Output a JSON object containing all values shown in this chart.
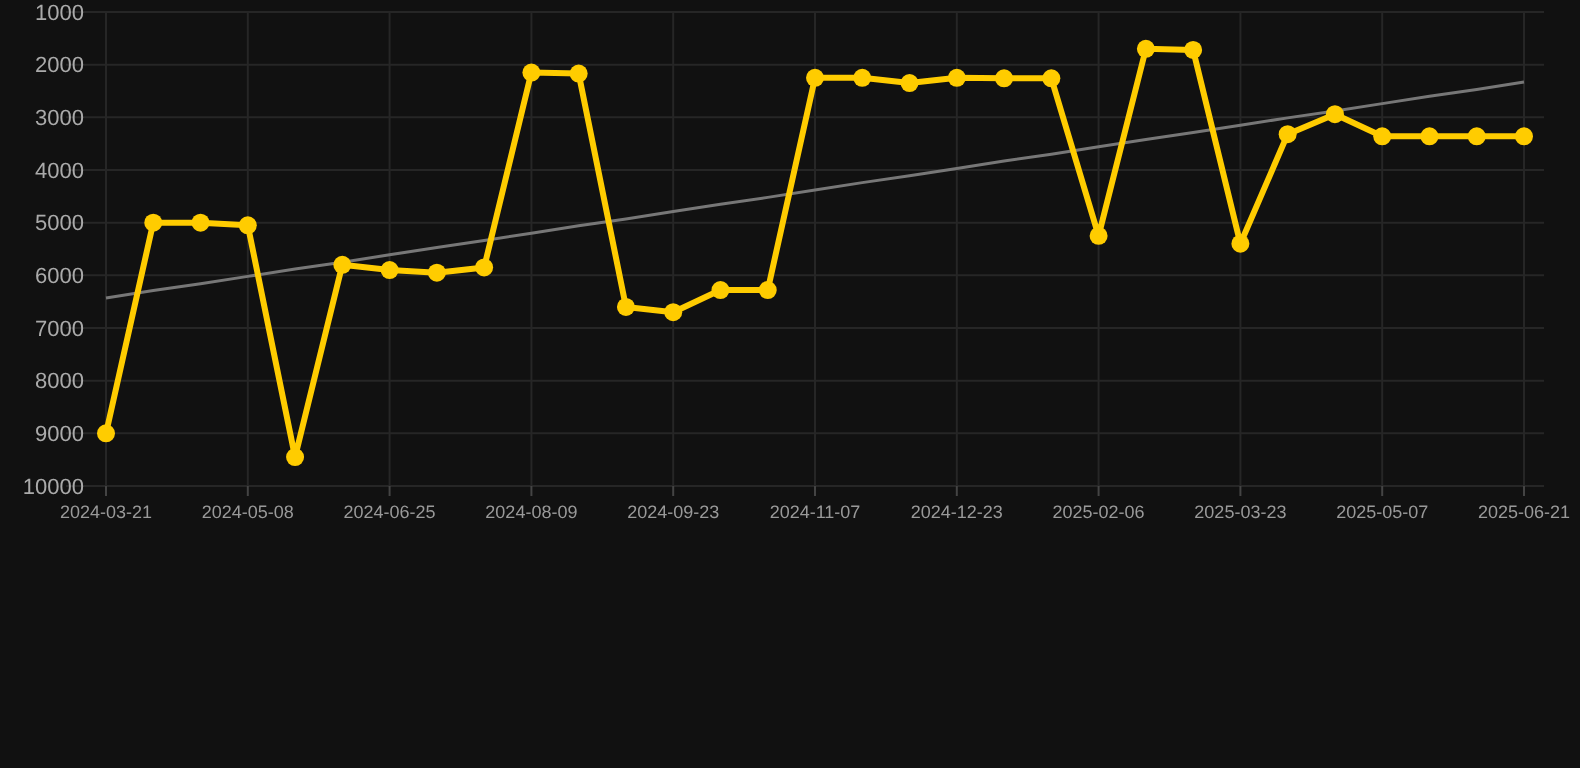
{
  "chart_data": {
    "type": "line",
    "categories": [
      "2024-03-21",
      null,
      null,
      "2024-05-08",
      null,
      null,
      "2024-06-25",
      null,
      null,
      "2024-08-09",
      null,
      null,
      "2024-09-23",
      null,
      null,
      "2024-11-07",
      null,
      null,
      "2024-12-23",
      null,
      null,
      "2025-02-06",
      null,
      null,
      "2025-03-23",
      null,
      null,
      "2025-05-07",
      null,
      null,
      "2025-06-21"
    ],
    "series": [
      {
        "color": "#ffcc00",
        "marker": "circle",
        "values": [
          9000,
          5000,
          5000,
          5050,
          9450,
          5800,
          5900,
          5950,
          5850,
          2150,
          2170,
          6600,
          6700,
          6280,
          6280,
          2250,
          2250,
          2350,
          2250,
          2260,
          2260,
          5250,
          1700,
          1720,
          5400,
          3320,
          2940,
          3360,
          3360,
          3360,
          3360
        ]
      },
      {
        "type": "line",
        "color": "#777777",
        "marker": "none",
        "values": [
          6430,
          6290,
          6160,
          6020,
          5880,
          5750,
          5610,
          5470,
          5340,
          5200,
          5060,
          4930,
          4790,
          4650,
          4520,
          4380,
          4240,
          4110,
          3970,
          3830,
          3700,
          3560,
          3420,
          3290,
          3150,
          3010,
          2880,
          2740,
          2600,
          2470,
          2330
        ]
      }
    ],
    "ylim": [
      10000,
      1000
    ],
    "yticks": [
      1000,
      2000,
      3000,
      4000,
      5000,
      6000,
      7000,
      8000,
      9000,
      10000
    ],
    "grid": true
  }
}
